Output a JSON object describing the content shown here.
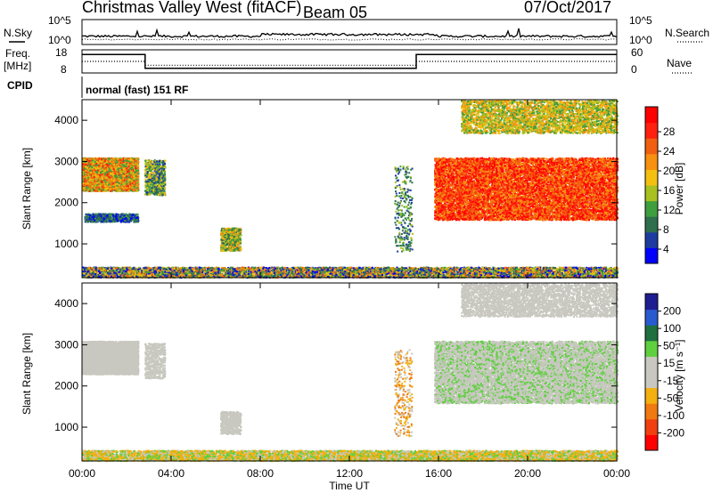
{
  "header": {
    "title": "Christmas Valley West (fitACF)",
    "beam": "Beam 05",
    "date": "07/Oct/2017"
  },
  "top_panels": {
    "nsky_label": "N.Sky",
    "nsky_ticks": [
      "10^5",
      "10^0"
    ],
    "nsearch_label": "N.Search",
    "nsearch_ticks": [
      "10^5",
      "10^0"
    ],
    "freq_label_1": "Freq.",
    "freq_label_2": "[MHz]",
    "freq_ticks": [
      "18",
      "8"
    ],
    "nave_label": "Nave",
    "nave_ticks": [
      "60",
      "0"
    ],
    "cpid_label": "CPID",
    "cpid_text": "normal (fast) 151 RF"
  },
  "colors": {
    "power_scale": [
      "#0000ff",
      "#1e3ca0",
      "#2f6f4e",
      "#3f9f3f",
      "#a8c020",
      "#f4c010",
      "#f89010",
      "#f06010",
      "#ff2010",
      "#ff0000"
    ],
    "velocity_scale": [
      "#1e1e90",
      "#2a5ad0",
      "#1f6f3f",
      "#5fcf3f",
      "#c8c8c0",
      "#c8c8c0",
      "#f4b010",
      "#f07a10",
      "#f04010",
      "#ff0000"
    ]
  },
  "chart_data": [
    {
      "type": "line",
      "name": "N.Sky / N.Search",
      "x_unit": "hours UT",
      "x": [
        0,
        0.5,
        1,
        2,
        3,
        4,
        5,
        6,
        7,
        8,
        9,
        10,
        11,
        12,
        13,
        14,
        15,
        16,
        17,
        18,
        19,
        20,
        21,
        22,
        23,
        24
      ],
      "y_scale": "log",
      "ylim": [
        "10^0",
        "10^5"
      ]
    },
    {
      "type": "line",
      "ylabel": "Freq. [MHz]",
      "ylim": [
        8,
        18
      ],
      "segments": [
        {
          "x_start": "00:00",
          "x_end": "02:50",
          "value": 16
        },
        {
          "x_start": "02:50",
          "x_end": "15:00",
          "value": 10
        },
        {
          "x_start": "15:00",
          "x_end": "24:00",
          "value": 16
        }
      ],
      "y2label": "Nave",
      "y2lim": [
        0,
        60
      ]
    },
    {
      "type": "heatmap",
      "ylabel": "Slant Range [km]",
      "ylim": [
        180,
        4500
      ],
      "yticks": [
        "1000",
        "2000",
        "3000",
        "4000"
      ],
      "xticks": [
        "00:00",
        "04:00",
        "08:00",
        "12:00",
        "16:00",
        "20:00",
        "00:00"
      ],
      "colorbar_label": "Power [dB]",
      "colorbar_ticks": [
        "4",
        "8",
        "12",
        "16",
        "20",
        "24",
        "28"
      ],
      "clim": [
        0,
        30
      ]
    },
    {
      "type": "heatmap",
      "ylabel": "Slant Range [km]",
      "ylim": [
        180,
        4500
      ],
      "yticks": [
        "1000",
        "2000",
        "3000",
        "4000"
      ],
      "xticks": [
        "00:00",
        "04:00",
        "08:00",
        "12:00",
        "16:00",
        "20:00",
        "00:00"
      ],
      "xlabel": "Time UT",
      "colorbar_label": "Velocity [m s⁻¹]",
      "colorbar_ticks": [
        "200",
        "100",
        "50",
        "15",
        "-15",
        "-50",
        "-100",
        "-200"
      ],
      "clim": [
        -250,
        250
      ]
    }
  ]
}
